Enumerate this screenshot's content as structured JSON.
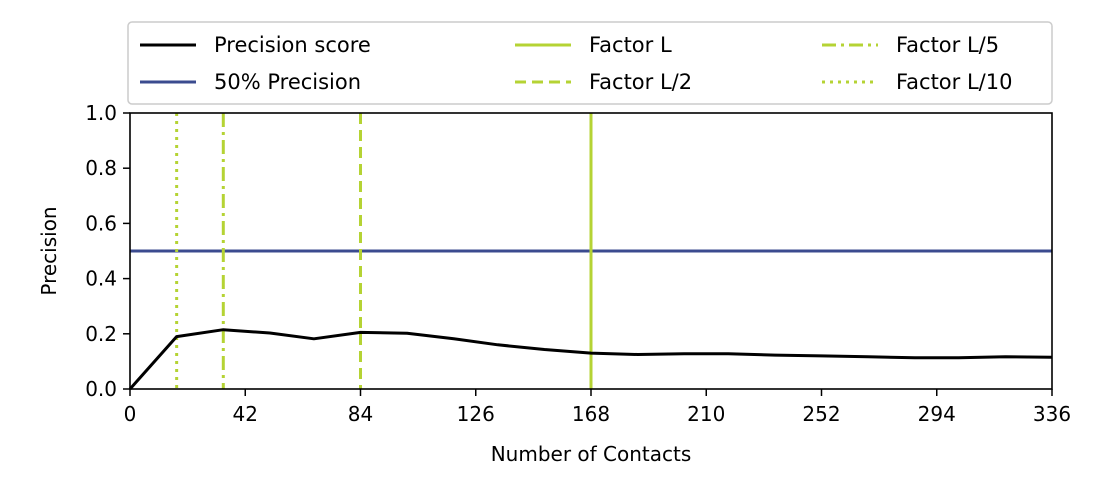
{
  "chart_data": {
    "type": "line",
    "title": "",
    "xlabel": "Number of Contacts",
    "ylabel": "Precision",
    "xlim": [
      0,
      336
    ],
    "ylim": [
      0.0,
      1.0
    ],
    "x_ticks": [
      0,
      42,
      84,
      126,
      168,
      210,
      252,
      294,
      336
    ],
    "y_ticks": [
      "0.0",
      "0.2",
      "0.4",
      "0.6",
      "0.8",
      "1.0"
    ],
    "grid": false,
    "legend_position": "top",
    "series": [
      {
        "name": "Precision score",
        "style": "solid",
        "color": "#000000",
        "x": [
          0,
          17,
          34,
          51,
          67,
          84,
          101,
          118,
          134,
          151,
          168,
          185,
          202,
          218,
          235,
          252,
          269,
          286,
          302,
          319,
          336
        ],
        "y": [
          0.0,
          0.19,
          0.215,
          0.203,
          0.182,
          0.205,
          0.202,
          0.182,
          0.16,
          0.143,
          0.13,
          0.125,
          0.128,
          0.128,
          0.123,
          0.12,
          0.117,
          0.113,
          0.113,
          0.117,
          0.115
        ]
      }
    ],
    "reference_lines": [
      {
        "name": "50% Precision",
        "orientation": "horizontal",
        "value": 0.5,
        "style": "solid",
        "color": "#3b4b8f"
      },
      {
        "name": "Factor L",
        "orientation": "vertical",
        "value": 168,
        "style": "solid",
        "color": "#b5d334"
      },
      {
        "name": "Factor L/2",
        "orientation": "vertical",
        "value": 84,
        "style": "dashed",
        "color": "#b5d334"
      },
      {
        "name": "Factor L/5",
        "orientation": "vertical",
        "value": 34,
        "style": "dashdot",
        "color": "#b5d334"
      },
      {
        "name": "Factor L/10",
        "orientation": "vertical",
        "value": 17,
        "style": "dotted",
        "color": "#b5d334"
      }
    ],
    "legend": [
      {
        "label": "Precision score",
        "style": "solid",
        "color": "#000000"
      },
      {
        "label": "50% Precision",
        "style": "solid",
        "color": "#3b4b8f"
      },
      {
        "label": "Factor L",
        "style": "solid",
        "color": "#b5d334"
      },
      {
        "label": "Factor L/2",
        "style": "dashed",
        "color": "#b5d334"
      },
      {
        "label": "Factor L/5",
        "style": "dashdot",
        "color": "#b5d334"
      },
      {
        "label": "Factor L/10",
        "style": "dotted",
        "color": "#b5d334"
      }
    ]
  }
}
